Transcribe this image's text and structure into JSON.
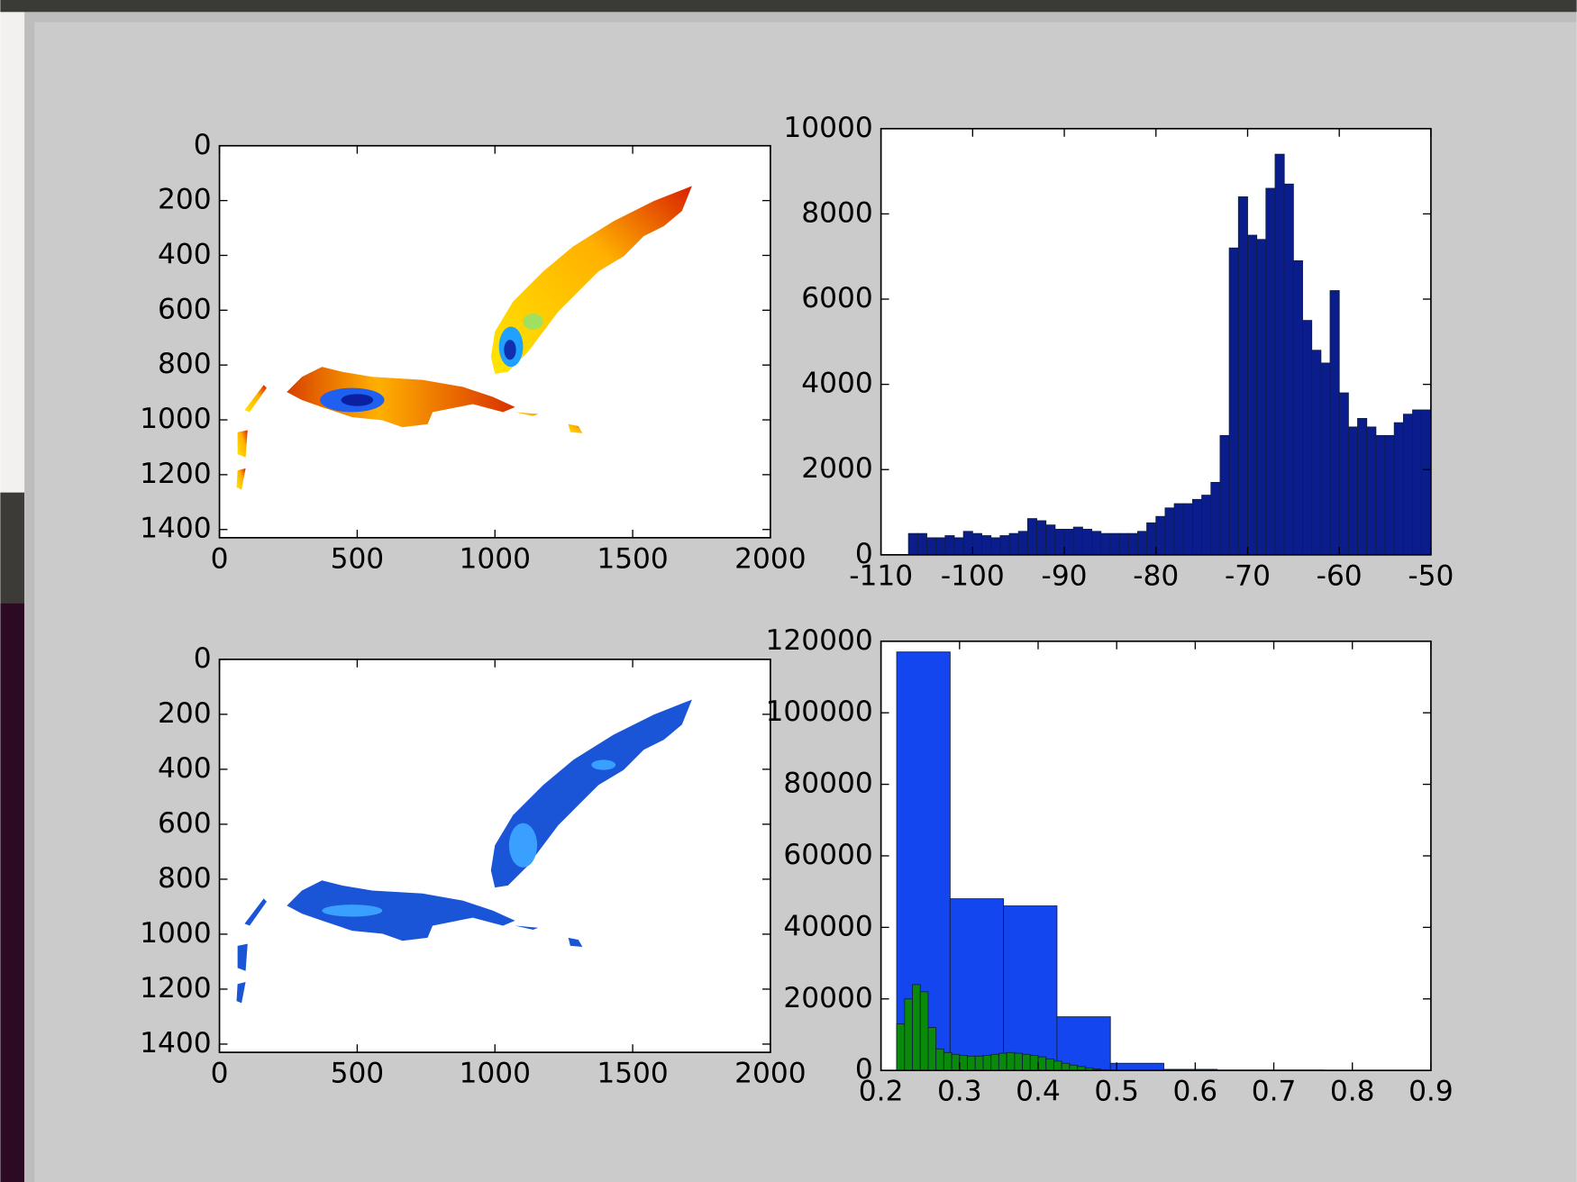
{
  "chart_data": [
    {
      "type": "image",
      "xlim": [
        0,
        2000
      ],
      "ylim": [
        1430,
        0
      ],
      "xticks": [
        0,
        500,
        1000,
        1500,
        2000
      ],
      "yticks": [
        0,
        200,
        400,
        600,
        800,
        1000,
        1200,
        1400
      ]
    },
    {
      "type": "histogram",
      "xlim": [
        -110,
        -50
      ],
      "ylim": [
        0,
        10000
      ],
      "xticks": [
        -110,
        -100,
        -90,
        -80,
        -70,
        -60,
        -50
      ],
      "yticks": [
        0,
        2000,
        4000,
        6000,
        8000,
        10000
      ],
      "series": [
        {
          "color": "#0b1d8c",
          "bins": [
            -107,
            -106,
            -105,
            -104,
            -103,
            -102,
            -101,
            -100,
            -99,
            -98,
            -97,
            -96,
            -95,
            -94,
            -93,
            -92,
            -91,
            -90,
            -89,
            -88,
            -87,
            -86,
            -85,
            -84,
            -83,
            -82,
            -81,
            -80,
            -79,
            -78,
            -77,
            -76,
            -75,
            -74,
            -73,
            -72,
            -71,
            -70,
            -69,
            -68,
            -67,
            -66,
            -65,
            -64,
            -63,
            -62,
            -61,
            -60,
            -59,
            -58,
            -57,
            -56,
            -55,
            -54,
            -53,
            -52,
            -51,
            -50
          ],
          "values": [
            500,
            500,
            400,
            400,
            450,
            400,
            550,
            500,
            450,
            400,
            450,
            500,
            550,
            850,
            800,
            700,
            600,
            600,
            650,
            600,
            550,
            500,
            500,
            500,
            500,
            550,
            750,
            900,
            1100,
            1200,
            1200,
            1300,
            1400,
            1700,
            2800,
            7200,
            8400,
            7500,
            7400,
            8600,
            9400,
            8700,
            6900,
            5500,
            4800,
            4500,
            6200,
            3800,
            3000,
            3200,
            3000,
            2800,
            2800,
            3100,
            3300,
            3400,
            3400
          ]
        }
      ]
    },
    {
      "type": "image",
      "xlim": [
        0,
        2000
      ],
      "ylim": [
        1430,
        0
      ],
      "xticks": [
        0,
        500,
        1000,
        1500,
        2000
      ],
      "yticks": [
        0,
        200,
        400,
        600,
        800,
        1000,
        1200,
        1400
      ]
    },
    {
      "type": "histogram",
      "xlim": [
        0.2,
        0.9
      ],
      "ylim": [
        0,
        120000
      ],
      "xticks": [
        0.2,
        0.3,
        0.4,
        0.5,
        0.6,
        0.7,
        0.8,
        0.9
      ],
      "yticks": [
        0,
        20000,
        40000,
        60000,
        80000,
        100000,
        120000
      ],
      "series": [
        {
          "color": "#1446f0",
          "bins": [
            0.22,
            0.288,
            0.356,
            0.424,
            0.492,
            0.56,
            0.628,
            0.696,
            0.764,
            0.832,
            0.9
          ],
          "values": [
            117000,
            48000,
            46000,
            15000,
            2000,
            300,
            100,
            100,
            50,
            50
          ]
        },
        {
          "color": "#0a8a0a",
          "bins": [
            0.22,
            0.23,
            0.24,
            0.25,
            0.26,
            0.27,
            0.28,
            0.29,
            0.3,
            0.31,
            0.32,
            0.33,
            0.34,
            0.35,
            0.36,
            0.37,
            0.38,
            0.39,
            0.4,
            0.41,
            0.42,
            0.43,
            0.44,
            0.45,
            0.46,
            0.47,
            0.48,
            0.49,
            0.5
          ],
          "values": [
            13000,
            20000,
            24000,
            22000,
            12000,
            6000,
            5000,
            4500,
            4200,
            4000,
            4000,
            4200,
            4500,
            4800,
            5000,
            4800,
            4500,
            4200,
            3800,
            3200,
            2600,
            2000,
            1500,
            1100,
            700,
            400,
            200,
            100
          ]
        }
      ]
    }
  ]
}
